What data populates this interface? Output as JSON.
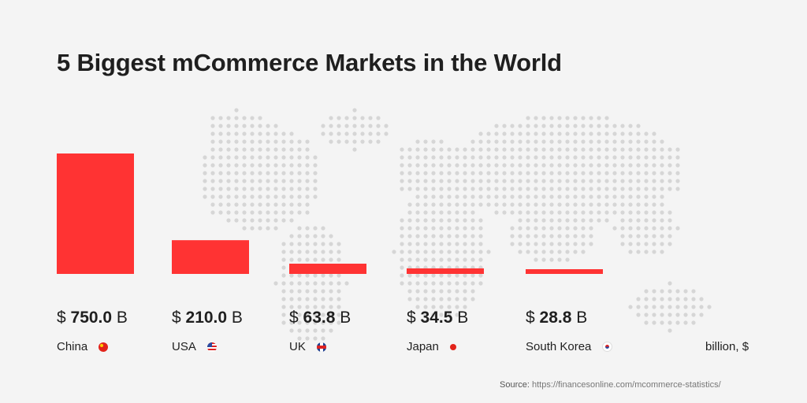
{
  "chart_data": {
    "type": "bar",
    "title": "5 Biggest mCommerce Markets in the World",
    "categories": [
      "China",
      "USA",
      "UK",
      "Japan",
      "South Korea"
    ],
    "values": [
      750.0,
      210.0,
      63.8,
      34.5,
      28.8
    ],
    "value_labels": [
      "750.0",
      "210.0",
      "63.8",
      "34.5",
      "28.8"
    ],
    "currency_prefix": "$",
    "value_suffix": "B",
    "unit_label": "billion, $",
    "flags": [
      "flag-china",
      "flag-usa",
      "flag-uk",
      "flag-japan",
      "flag-korea"
    ],
    "bar_color": "#ff3333",
    "ylim": [
      0,
      750
    ]
  },
  "source": {
    "label": "Source:",
    "url": "https://financesonline.com/mcommerce-statistics/"
  },
  "colors": {
    "background": "#f4f4f4",
    "map_dots": "#d6d6d6",
    "text": "#1f1f1f"
  },
  "decoration": {
    "background_image": "world-map-dots"
  }
}
